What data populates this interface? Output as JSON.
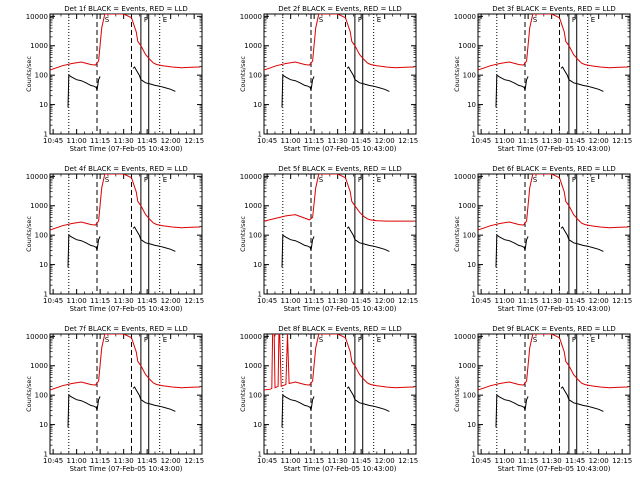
{
  "chart_data": {
    "type": "line",
    "layout": "3x3 grid",
    "colors": {
      "events": "#000000",
      "lld": "#dd0000",
      "axes": "#000000",
      "background": "#ffffff"
    },
    "shared": {
      "xlabel": "Start Time (07-Feb-05 10:43:00)",
      "ylabel": "Counts/sec",
      "xticks": [
        "10:45",
        "11:00",
        "11:15",
        "11:30",
        "11:45",
        "12:00",
        "12:15"
      ],
      "xtick_minutes": [
        2,
        17,
        32,
        47,
        62,
        77,
        92
      ],
      "xlim_minutes": [
        0,
        97
      ],
      "yticks": [
        "1",
        "10",
        "100",
        "1000",
        "10000"
      ],
      "ytick_values": [
        1,
        10,
        100,
        1000,
        10000
      ],
      "ylim": [
        1,
        12000
      ],
      "yscale": "log",
      "vlines": [
        {
          "minutes": 12,
          "style": "dotted"
        },
        {
          "minutes": 30,
          "style": "dashed"
        },
        {
          "minutes": 52,
          "style": "dashed"
        },
        {
          "minutes": 58,
          "style": "solid"
        },
        {
          "minutes": 63,
          "style": "solid"
        },
        {
          "minutes": 70,
          "style": "dotted"
        }
      ],
      "annotations": [
        {
          "text": "S",
          "minutes": 33
        },
        {
          "text": "F",
          "minutes": 58
        },
        {
          "text": "E",
          "minutes": 70
        }
      ]
    },
    "panels": [
      {
        "title": "Det 1f BLACK = Events, RED = LLD",
        "lld": {
          "x": [
            0,
            8,
            14,
            20,
            26,
            29,
            31,
            33,
            35,
            37,
            43,
            47,
            52,
            55,
            56,
            58,
            61,
            64,
            66,
            68,
            72,
            78,
            84,
            90,
            96
          ],
          "y": [
            150,
            210,
            250,
            280,
            230,
            220,
            300,
            4000,
            12000,
            12000,
            12000,
            12000,
            9000,
            3000,
            1400,
            1000,
            500,
            330,
            260,
            230,
            210,
            190,
            180,
            185,
            190
          ]
        },
        "events": {
          "x": [
            11.5,
            12,
            14,
            17,
            20,
            23,
            26,
            28,
            29.5,
            30,
            31,
            32
          ],
          "y": [
            8,
            100,
            85,
            70,
            65,
            55,
            45,
            42,
            38,
            30,
            70,
            90
          ],
          "x2": [
            53,
            54,
            55,
            57,
            58,
            59,
            61,
            64,
            67,
            70,
            73,
            77,
            80
          ],
          "y2": [
            170,
            190,
            150,
            100,
            70,
            65,
            55,
            50,
            45,
            42,
            38,
            33,
            28
          ]
        }
      },
      {
        "title": "Det 2f BLACK = Events, RED = LLD",
        "lld": {
          "x": [
            0,
            8,
            14,
            20,
            26,
            29,
            31,
            33,
            35,
            37,
            43,
            47,
            52,
            55,
            56,
            58,
            61,
            64,
            66,
            68,
            72,
            78,
            84,
            90,
            96
          ],
          "y": [
            150,
            210,
            250,
            280,
            230,
            220,
            300,
            4000,
            12000,
            12000,
            12000,
            12000,
            9000,
            3000,
            1400,
            1000,
            500,
            330,
            260,
            230,
            210,
            190,
            180,
            185,
            190
          ]
        },
        "events": {
          "x": [
            11.5,
            12,
            14,
            17,
            20,
            23,
            26,
            28,
            29.5,
            30,
            31,
            32
          ],
          "y": [
            8,
            100,
            85,
            70,
            65,
            55,
            45,
            42,
            38,
            30,
            70,
            90
          ],
          "x2": [
            53,
            54,
            55,
            57,
            58,
            59,
            61,
            64,
            67,
            70,
            73,
            77,
            80
          ],
          "y2": [
            170,
            190,
            150,
            100,
            70,
            65,
            55,
            50,
            45,
            42,
            38,
            33,
            28
          ]
        }
      },
      {
        "title": "Det 3f BLACK = Events, RED = LLD",
        "lld": {
          "x": [
            0,
            8,
            14,
            20,
            26,
            29,
            31,
            33,
            35,
            37,
            43,
            47,
            52,
            55,
            56,
            58,
            61,
            64,
            66,
            68,
            72,
            78,
            84,
            90,
            96
          ],
          "y": [
            150,
            210,
            250,
            280,
            230,
            220,
            300,
            4000,
            12000,
            12000,
            12000,
            12000,
            9000,
            3000,
            1400,
            1000,
            500,
            330,
            260,
            230,
            210,
            190,
            180,
            185,
            190
          ]
        },
        "events": {
          "x": [
            11.5,
            12,
            14,
            17,
            20,
            23,
            26,
            28,
            29.5,
            30,
            31,
            32
          ],
          "y": [
            8,
            100,
            85,
            70,
            65,
            55,
            45,
            42,
            38,
            30,
            70,
            90
          ],
          "x2": [
            53,
            54,
            55,
            57,
            58,
            59,
            61,
            64,
            67,
            70,
            73,
            77,
            80
          ],
          "y2": [
            170,
            190,
            150,
            100,
            70,
            65,
            55,
            50,
            45,
            42,
            38,
            33,
            28
          ]
        }
      },
      {
        "title": "Det 4f BLACK = Events, RED = LLD",
        "lld": {
          "x": [
            0,
            8,
            14,
            20,
            26,
            29,
            31,
            33,
            35,
            37,
            43,
            47,
            52,
            55,
            56,
            58,
            61,
            64,
            66,
            68,
            72,
            78,
            84,
            90,
            96
          ],
          "y": [
            150,
            210,
            250,
            280,
            230,
            220,
            300,
            4000,
            12000,
            12000,
            12000,
            12000,
            9000,
            3000,
            1400,
            1000,
            500,
            330,
            260,
            230,
            210,
            190,
            180,
            185,
            190
          ]
        },
        "events": {
          "x": [
            11.5,
            12,
            14,
            17,
            20,
            23,
            26,
            28,
            29.5,
            30,
            31,
            32
          ],
          "y": [
            8,
            100,
            85,
            70,
            65,
            55,
            45,
            42,
            38,
            30,
            70,
            90
          ],
          "x2": [
            53,
            54,
            55,
            57,
            58,
            59,
            61,
            64,
            67,
            70,
            73,
            77,
            80
          ],
          "y2": [
            170,
            190,
            150,
            100,
            70,
            65,
            55,
            50,
            45,
            42,
            38,
            33,
            28
          ]
        }
      },
      {
        "title": "Det 5f BLACK = Events, RED = LLD",
        "lld": {
          "x": [
            0,
            8,
            14,
            20,
            26,
            29,
            31,
            33,
            35,
            37,
            43,
            47,
            52,
            55,
            56,
            58,
            61,
            64,
            66,
            68,
            72,
            78,
            84,
            90,
            96
          ],
          "y": [
            300,
            380,
            450,
            500,
            380,
            330,
            400,
            4000,
            12000,
            12000,
            12000,
            12000,
            9000,
            3000,
            1400,
            1000,
            600,
            420,
            360,
            330,
            310,
            300,
            300,
            300,
            300
          ]
        },
        "events": {
          "x": [
            11.5,
            12,
            14,
            17,
            20,
            23,
            26,
            28,
            29.5,
            30,
            31,
            32
          ],
          "y": [
            8,
            100,
            85,
            70,
            65,
            55,
            45,
            42,
            38,
            30,
            70,
            90
          ],
          "x2": [
            53,
            54,
            55,
            57,
            58,
            59,
            61,
            64,
            67,
            70,
            73,
            77,
            80
          ],
          "y2": [
            170,
            190,
            150,
            100,
            70,
            65,
            55,
            50,
            45,
            42,
            38,
            33,
            28
          ]
        }
      },
      {
        "title": "Det 6f BLACK = Events, RED = LLD",
        "lld": {
          "x": [
            0,
            8,
            14,
            20,
            26,
            29,
            31,
            33,
            35,
            37,
            43,
            47,
            52,
            55,
            56,
            58,
            61,
            64,
            66,
            68,
            72,
            78,
            84,
            90,
            96
          ],
          "y": [
            150,
            210,
            250,
            280,
            230,
            220,
            300,
            4000,
            12000,
            12000,
            12000,
            12000,
            9000,
            3000,
            1400,
            1000,
            500,
            330,
            260,
            230,
            210,
            190,
            180,
            185,
            190
          ]
        },
        "events": {
          "x": [
            11.5,
            12,
            14,
            17,
            20,
            23,
            26,
            28,
            29.5,
            30,
            31,
            32
          ],
          "y": [
            8,
            100,
            85,
            70,
            65,
            55,
            45,
            42,
            38,
            30,
            70,
            90
          ],
          "x2": [
            53,
            54,
            55,
            57,
            58,
            59,
            61,
            64,
            67,
            70,
            73,
            77,
            80
          ],
          "y2": [
            170,
            190,
            150,
            100,
            70,
            65,
            55,
            50,
            45,
            42,
            38,
            33,
            28
          ]
        }
      },
      {
        "title": "Det 7f BLACK = Events, RED = LLD",
        "lld": {
          "x": [
            0,
            8,
            14,
            20,
            26,
            29,
            31,
            33,
            35,
            37,
            43,
            47,
            52,
            55,
            56,
            58,
            61,
            64,
            66,
            68,
            72,
            78,
            84,
            90,
            96
          ],
          "y": [
            150,
            210,
            250,
            280,
            230,
            220,
            300,
            4000,
            12000,
            12000,
            12000,
            12000,
            9000,
            3000,
            1400,
            1000,
            500,
            330,
            260,
            230,
            210,
            190,
            180,
            185,
            190
          ]
        },
        "events": {
          "x": [
            11.5,
            12,
            14,
            17,
            20,
            23,
            26,
            28,
            29.5,
            30,
            31,
            32
          ],
          "y": [
            8,
            100,
            85,
            70,
            65,
            55,
            45,
            42,
            38,
            30,
            70,
            90
          ],
          "x2": [
            53,
            54,
            55,
            57,
            58,
            59,
            61,
            64,
            67,
            70,
            73,
            77,
            80
          ],
          "y2": [
            170,
            190,
            150,
            100,
            70,
            65,
            55,
            50,
            45,
            42,
            38,
            33,
            28
          ]
        }
      },
      {
        "title": "Det 8f BLACK = Events, RED = LLD",
        "lld": {
          "x": [
            0,
            4,
            5,
            5.5,
            6.5,
            7,
            9,
            9.5,
            10,
            11,
            12,
            14,
            15,
            16,
            20,
            26,
            29,
            31,
            33,
            35,
            37,
            43,
            47,
            52,
            55,
            56,
            58,
            61,
            64,
            66,
            68,
            72,
            78,
            84,
            90,
            96
          ],
          "y": [
            150,
            160,
            170,
            12000,
            12000,
            180,
            200,
            12000,
            12000,
            200,
            210,
            230,
            12000,
            250,
            280,
            230,
            220,
            300,
            4000,
            12000,
            12000,
            12000,
            12000,
            9000,
            3000,
            1400,
            1000,
            500,
            330,
            260,
            230,
            210,
            190,
            180,
            185,
            190
          ]
        },
        "events": {
          "x": [
            11.5,
            12,
            14,
            17,
            20,
            23,
            26,
            28,
            29.5,
            30,
            31,
            32
          ],
          "y": [
            8,
            100,
            85,
            70,
            65,
            55,
            45,
            42,
            38,
            30,
            70,
            90
          ],
          "x2": [
            53,
            54,
            55,
            57,
            58,
            59,
            61,
            64,
            67,
            70,
            73,
            77,
            80
          ],
          "y2": [
            170,
            190,
            150,
            100,
            70,
            65,
            55,
            50,
            45,
            42,
            38,
            33,
            28
          ]
        }
      },
      {
        "title": "Det 9f BLACK = Events, RED = LLD",
        "lld": {
          "x": [
            0,
            8,
            14,
            20,
            26,
            29,
            31,
            33,
            35,
            37,
            43,
            47,
            52,
            55,
            56,
            58,
            61,
            64,
            66,
            68,
            72,
            78,
            84,
            90,
            96
          ],
          "y": [
            150,
            210,
            250,
            280,
            230,
            220,
            300,
            4000,
            12000,
            12000,
            12000,
            12000,
            9000,
            3000,
            1400,
            1000,
            500,
            330,
            260,
            230,
            210,
            190,
            180,
            185,
            190
          ]
        },
        "events": {
          "x": [
            11.5,
            12,
            14,
            17,
            20,
            23,
            26,
            28,
            29.5,
            30,
            31,
            32
          ],
          "y": [
            8,
            100,
            85,
            70,
            65,
            55,
            45,
            42,
            38,
            30,
            70,
            90
          ],
          "x2": [
            53,
            54,
            55,
            57,
            58,
            59,
            61,
            64,
            67,
            70,
            73,
            77,
            80
          ],
          "y2": [
            170,
            190,
            150,
            100,
            70,
            65,
            55,
            50,
            45,
            42,
            38,
            33,
            28
          ]
        }
      }
    ]
  }
}
